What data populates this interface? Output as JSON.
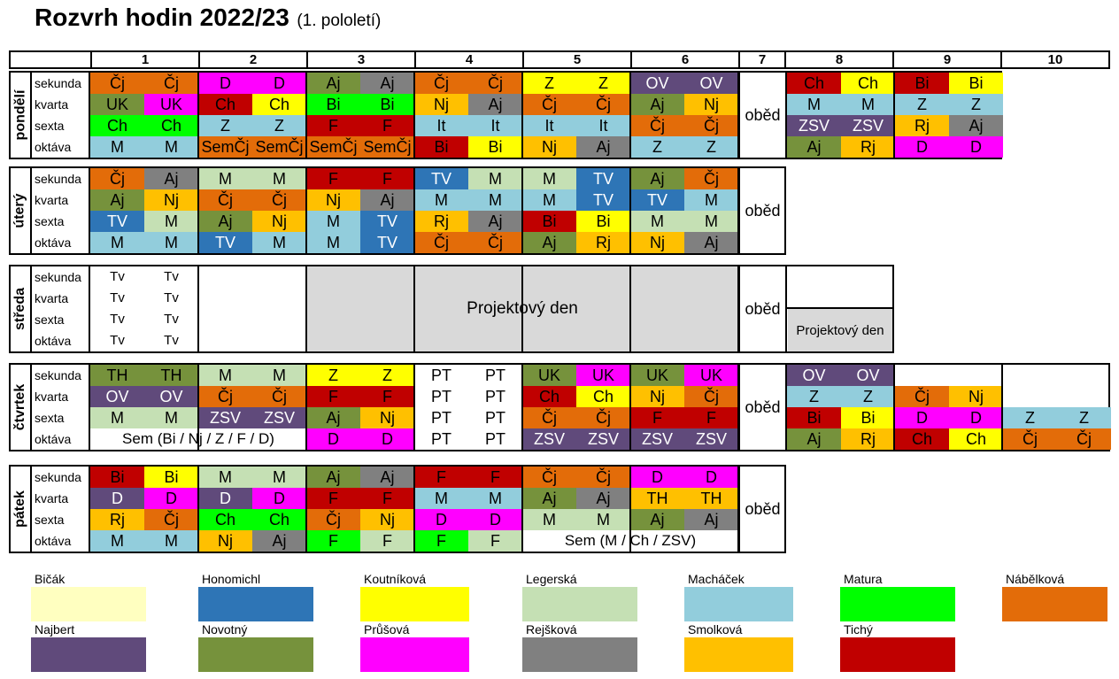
{
  "title": {
    "main": "Rozvrh hodin 2022/23",
    "sub": "(1. pololetí)"
  },
  "periods": [
    "1",
    "2",
    "3",
    "4",
    "5",
    "6",
    "7",
    "8",
    "9",
    "10"
  ],
  "classes": [
    "sekunda",
    "kvarta",
    "sexta",
    "oktáva"
  ],
  "colors": {
    "Bičák": "#ffffc0",
    "Honomichl": "#2e75b6",
    "Koutníková": "#ffff00",
    "Legerská": "#c5e0b4",
    "Macháček": "#92cddc",
    "Matura": "#00ff00",
    "Nábělková": "#e36c09",
    "Najbert": "#604a7b",
    "Novotný": "#76923c",
    "Průšová": "#ff00ff",
    "Rejšková": "#808080",
    "Smolková": "#ffc000",
    "Tichý": "#c00000",
    "none": "#ffffff",
    "gray": "#d9d9d9"
  },
  "obed_label": "oběd",
  "days": [
    {
      "name": "pondělí",
      "rows": [
        [
          [
            "Čj",
            "Nábělková"
          ],
          [
            "Čj",
            "Nábělková"
          ],
          [
            "D",
            "Průšová"
          ],
          [
            "D",
            "Průšová"
          ],
          [
            "Aj",
            "Novotný"
          ],
          [
            "Aj",
            "Rejšková"
          ],
          [
            "Čj",
            "Nábělková"
          ],
          [
            "Čj",
            "Nábělková"
          ],
          [
            "Z",
            "Koutníková"
          ],
          [
            "Z",
            "Koutníková"
          ],
          [
            "OV",
            "Najbert"
          ],
          [
            "OV",
            "Najbert"
          ],
          null,
          null,
          [
            "Ch",
            "Tichý"
          ],
          [
            "Ch",
            "Koutníková"
          ],
          [
            "Bi",
            "Tichý"
          ],
          [
            "Bi",
            "Koutníková"
          ]
        ],
        [
          [
            "UK",
            "Novotný"
          ],
          [
            "UK",
            "Průšová"
          ],
          [
            "Ch",
            "Tichý"
          ],
          [
            "Ch",
            "Koutníková"
          ],
          [
            "Bi",
            "Matura"
          ],
          [
            "Bi",
            "Matura"
          ],
          [
            "Nj",
            "Smolková"
          ],
          [
            "Aj",
            "Rejšková"
          ],
          [
            "Čj",
            "Nábělková"
          ],
          [
            "Čj",
            "Nábělková"
          ],
          [
            "Aj",
            "Novotný"
          ],
          [
            "Nj",
            "Smolková"
          ],
          null,
          null,
          [
            "M",
            "Macháček"
          ],
          [
            "M",
            "Macháček"
          ],
          [
            "Z",
            "Macháček"
          ],
          [
            "Z",
            "Macháček"
          ]
        ],
        [
          [
            "Ch",
            "Matura"
          ],
          [
            "Ch",
            "Matura"
          ],
          [
            "Z",
            "Macháček"
          ],
          [
            "Z",
            "Macháček"
          ],
          [
            "F",
            "Tichý"
          ],
          [
            "F",
            "Tichý"
          ],
          [
            "It",
            "Macháček"
          ],
          [
            "It",
            "Macháček"
          ],
          [
            "It",
            "Macháček"
          ],
          [
            "It",
            "Macháček"
          ],
          [
            "Čj",
            "Nábělková"
          ],
          [
            "Čj",
            "Nábělková"
          ],
          null,
          null,
          [
            "ZSV",
            "Najbert"
          ],
          [
            "ZSV",
            "Najbert"
          ],
          [
            "Rj",
            "Smolková"
          ],
          [
            "Aj",
            "Rejšková"
          ]
        ],
        [
          [
            "M",
            "Macháček"
          ],
          [
            "M",
            "Macháček"
          ],
          [
            "SemČj",
            "Nábělková"
          ],
          [
            "SemČj",
            "Nábělková"
          ],
          [
            "SemČj",
            "Nábělková"
          ],
          [
            "SemČj",
            "Nábělková"
          ],
          [
            "Bi",
            "Tichý"
          ],
          [
            "Bi",
            "Koutníková"
          ],
          [
            "Nj",
            "Smolková"
          ],
          [
            "Aj",
            "Rejšková"
          ],
          [
            "Z",
            "Macháček"
          ],
          [
            "Z",
            "Macháček"
          ],
          null,
          null,
          [
            "Aj",
            "Novotný"
          ],
          [
            "Rj",
            "Smolková"
          ],
          [
            "D",
            "Průšová"
          ],
          [
            "D",
            "Průšová"
          ]
        ]
      ]
    },
    {
      "name": "úterý",
      "rows": [
        [
          [
            "Čj",
            "Nábělková"
          ],
          [
            "Aj",
            "Rejšková"
          ],
          [
            "M",
            "Legerská"
          ],
          [
            "M",
            "Legerská"
          ],
          [
            "F",
            "Tichý"
          ],
          [
            "F",
            "Tichý"
          ],
          [
            "TV",
            "Honomichl"
          ],
          [
            "M",
            "Legerská"
          ],
          [
            "M",
            "Legerská"
          ],
          [
            "TV",
            "Honomichl"
          ],
          [
            "Aj",
            "Novotný"
          ],
          [
            "Čj",
            "Nábělková"
          ]
        ],
        [
          [
            "Aj",
            "Novotný"
          ],
          [
            "Nj",
            "Smolková"
          ],
          [
            "Čj",
            "Nábělková"
          ],
          [
            "Čj",
            "Nábělková"
          ],
          [
            "Nj",
            "Smolková"
          ],
          [
            "Aj",
            "Rejšková"
          ],
          [
            "M",
            "Macháček"
          ],
          [
            "M",
            "Macháček"
          ],
          [
            "M",
            "Macháček"
          ],
          [
            "TV",
            "Honomichl"
          ],
          [
            "TV",
            "Honomichl"
          ],
          [
            "M",
            "Macháček"
          ]
        ],
        [
          [
            "TV",
            "Honomichl"
          ],
          [
            "M",
            "Legerská"
          ],
          [
            "Aj",
            "Novotný"
          ],
          [
            "Nj",
            "Smolková"
          ],
          [
            "M",
            "Macháček"
          ],
          [
            "TV",
            "Honomichl"
          ],
          [
            "Rj",
            "Smolková"
          ],
          [
            "Aj",
            "Rejšková"
          ],
          [
            "Bi",
            "Tichý"
          ],
          [
            "Bi",
            "Koutníková"
          ],
          [
            "M",
            "Legerská"
          ],
          [
            "M",
            "Legerská"
          ]
        ],
        [
          [
            "M",
            "Macháček"
          ],
          [
            "M",
            "Macháček"
          ],
          [
            "TV",
            "Honomichl"
          ],
          [
            "M",
            "Macháček"
          ],
          [
            "M",
            "Macháček"
          ],
          [
            "TV",
            "Honomichl"
          ],
          [
            "Čj",
            "Nábělková"
          ],
          [
            "Čj",
            "Nábělková"
          ],
          [
            "Aj",
            "Novotný"
          ],
          [
            "Rj",
            "Smolková"
          ],
          [
            "Nj",
            "Smolková"
          ],
          [
            "Aj",
            "Rejšková"
          ]
        ]
      ]
    },
    {
      "name": "středa",
      "tv": "Tv",
      "projekt": "Projektový den"
    },
    {
      "name": "čtvrtek",
      "rows": [
        [
          [
            "TH",
            "Novotný"
          ],
          [
            "TH",
            "Novotný"
          ],
          [
            "M",
            "Legerská"
          ],
          [
            "M",
            "Legerská"
          ],
          [
            "Z",
            "Koutníková"
          ],
          [
            "Z",
            "Koutníková"
          ],
          [
            "PT",
            "none"
          ],
          [
            "PT",
            "none"
          ],
          [
            "UK",
            "Novotný"
          ],
          [
            "UK",
            "Průšová"
          ],
          [
            "UK",
            "Novotný"
          ],
          [
            "UK",
            "Průšová"
          ],
          null,
          null,
          [
            "OV",
            "Najbert"
          ],
          [
            "OV",
            "Najbert"
          ]
        ],
        [
          [
            "OV",
            "Najbert"
          ],
          [
            "OV",
            "Najbert"
          ],
          [
            "Čj",
            "Nábělková"
          ],
          [
            "Čj",
            "Nábělková"
          ],
          [
            "F",
            "Tichý"
          ],
          [
            "F",
            "Tichý"
          ],
          [
            "PT",
            "none"
          ],
          [
            "PT",
            "none"
          ],
          [
            "Ch",
            "Tichý"
          ],
          [
            "Ch",
            "Koutníková"
          ],
          [
            "Nj",
            "Smolková"
          ],
          [
            "Čj",
            "Nábělková"
          ],
          null,
          null,
          [
            "Z",
            "Macháček"
          ],
          [
            "Z",
            "Macháček"
          ],
          [
            "Čj",
            "Nábělková"
          ],
          [
            "Nj",
            "Smolková"
          ]
        ],
        [
          [
            "M",
            "Legerská"
          ],
          [
            "M",
            "Legerská"
          ],
          [
            "ZSV",
            "Najbert"
          ],
          [
            "ZSV",
            "Najbert"
          ],
          [
            "Aj",
            "Novotný"
          ],
          [
            "Nj",
            "Smolková"
          ],
          [
            "PT",
            "none"
          ],
          [
            "PT",
            "none"
          ],
          [
            "Čj",
            "Nábělková"
          ],
          [
            "Čj",
            "Nábělková"
          ],
          [
            "F",
            "Tichý"
          ],
          [
            "F",
            "Tichý"
          ],
          null,
          null,
          [
            "Bi",
            "Tichý"
          ],
          [
            "Bi",
            "Koutníková"
          ],
          [
            "D",
            "Průšová"
          ],
          [
            "D",
            "Průšová"
          ],
          [
            "Z",
            "Macháček"
          ],
          [
            "Z",
            "Macháček"
          ]
        ],
        [
          null,
          null,
          null,
          null,
          [
            "D",
            "Průšová"
          ],
          [
            "D",
            "Průšová"
          ],
          [
            "PT",
            "none"
          ],
          [
            "PT",
            "none"
          ],
          [
            "ZSV",
            "Najbert"
          ],
          [
            "ZSV",
            "Najbert"
          ],
          [
            "ZSV",
            "Najbert"
          ],
          [
            "ZSV",
            "Najbert"
          ],
          null,
          null,
          [
            "Aj",
            "Novotný"
          ],
          [
            "Rj",
            "Smolková"
          ],
          [
            "Ch",
            "Tichý"
          ],
          [
            "Ch",
            "Koutníková"
          ],
          [
            "Čj",
            "Nábělková"
          ],
          [
            "Čj",
            "Nábělková"
          ]
        ]
      ],
      "sem": "Sem (Bi / Nj / Z / F / D)"
    },
    {
      "name": "pátek",
      "rows": [
        [
          [
            "Bi",
            "Tichý"
          ],
          [
            "Bi",
            "Koutníková"
          ],
          [
            "M",
            "Legerská"
          ],
          [
            "M",
            "Legerská"
          ],
          [
            "Aj",
            "Novotný"
          ],
          [
            "Aj",
            "Rejšková"
          ],
          [
            "F",
            "Tichý"
          ],
          [
            "F",
            "Tichý"
          ],
          [
            "Čj",
            "Nábělková"
          ],
          [
            "Čj",
            "Nábělková"
          ],
          [
            "D",
            "Průšová"
          ],
          [
            "D",
            "Průšová"
          ]
        ],
        [
          [
            "D",
            "Najbert"
          ],
          [
            "D",
            "Průšová"
          ],
          [
            "D",
            "Najbert"
          ],
          [
            "D",
            "Průšová"
          ],
          [
            "F",
            "Tichý"
          ],
          [
            "F",
            "Tichý"
          ],
          [
            "M",
            "Macháček"
          ],
          [
            "M",
            "Macháček"
          ],
          [
            "Aj",
            "Novotný"
          ],
          [
            "Aj",
            "Rejšková"
          ],
          [
            "TH",
            "Smolková"
          ],
          [
            "TH",
            "Smolková"
          ]
        ],
        [
          [
            "Rj",
            "Smolková"
          ],
          [
            "Čj",
            "Nábělková"
          ],
          [
            "Ch",
            "Matura"
          ],
          [
            "Ch",
            "Matura"
          ],
          [
            "Čj",
            "Nábělková"
          ],
          [
            "Nj",
            "Smolková"
          ],
          [
            "D",
            "Průšová"
          ],
          [
            "D",
            "Průšová"
          ],
          [
            "M",
            "Legerská"
          ],
          [
            "M",
            "Legerská"
          ],
          [
            "Aj",
            "Novotný"
          ],
          [
            "Aj",
            "Rejšková"
          ]
        ],
        [
          [
            "M",
            "Macháček"
          ],
          [
            "M",
            "Macháček"
          ],
          [
            "Nj",
            "Smolková"
          ],
          [
            "Aj",
            "Rejšková"
          ],
          [
            "F",
            "Matura"
          ],
          [
            "F",
            "Legerská"
          ],
          [
            "F",
            "Matura"
          ],
          [
            "F",
            "Legerská"
          ],
          null,
          null,
          null,
          null
        ]
      ],
      "sem": "Sem (M / Ch / ZSV)"
    }
  ],
  "legend": [
    {
      "name": "Bičák"
    },
    {
      "name": "Honomichl"
    },
    {
      "name": "Koutníková"
    },
    {
      "name": "Legerská"
    },
    {
      "name": "Macháček"
    },
    {
      "name": "Matura"
    },
    {
      "name": "Nábělková"
    },
    {
      "name": "Najbert"
    },
    {
      "name": "Novotný"
    },
    {
      "name": "Průšová"
    },
    {
      "name": "Rejšková"
    },
    {
      "name": "Smolková"
    },
    {
      "name": "Tichý"
    }
  ]
}
